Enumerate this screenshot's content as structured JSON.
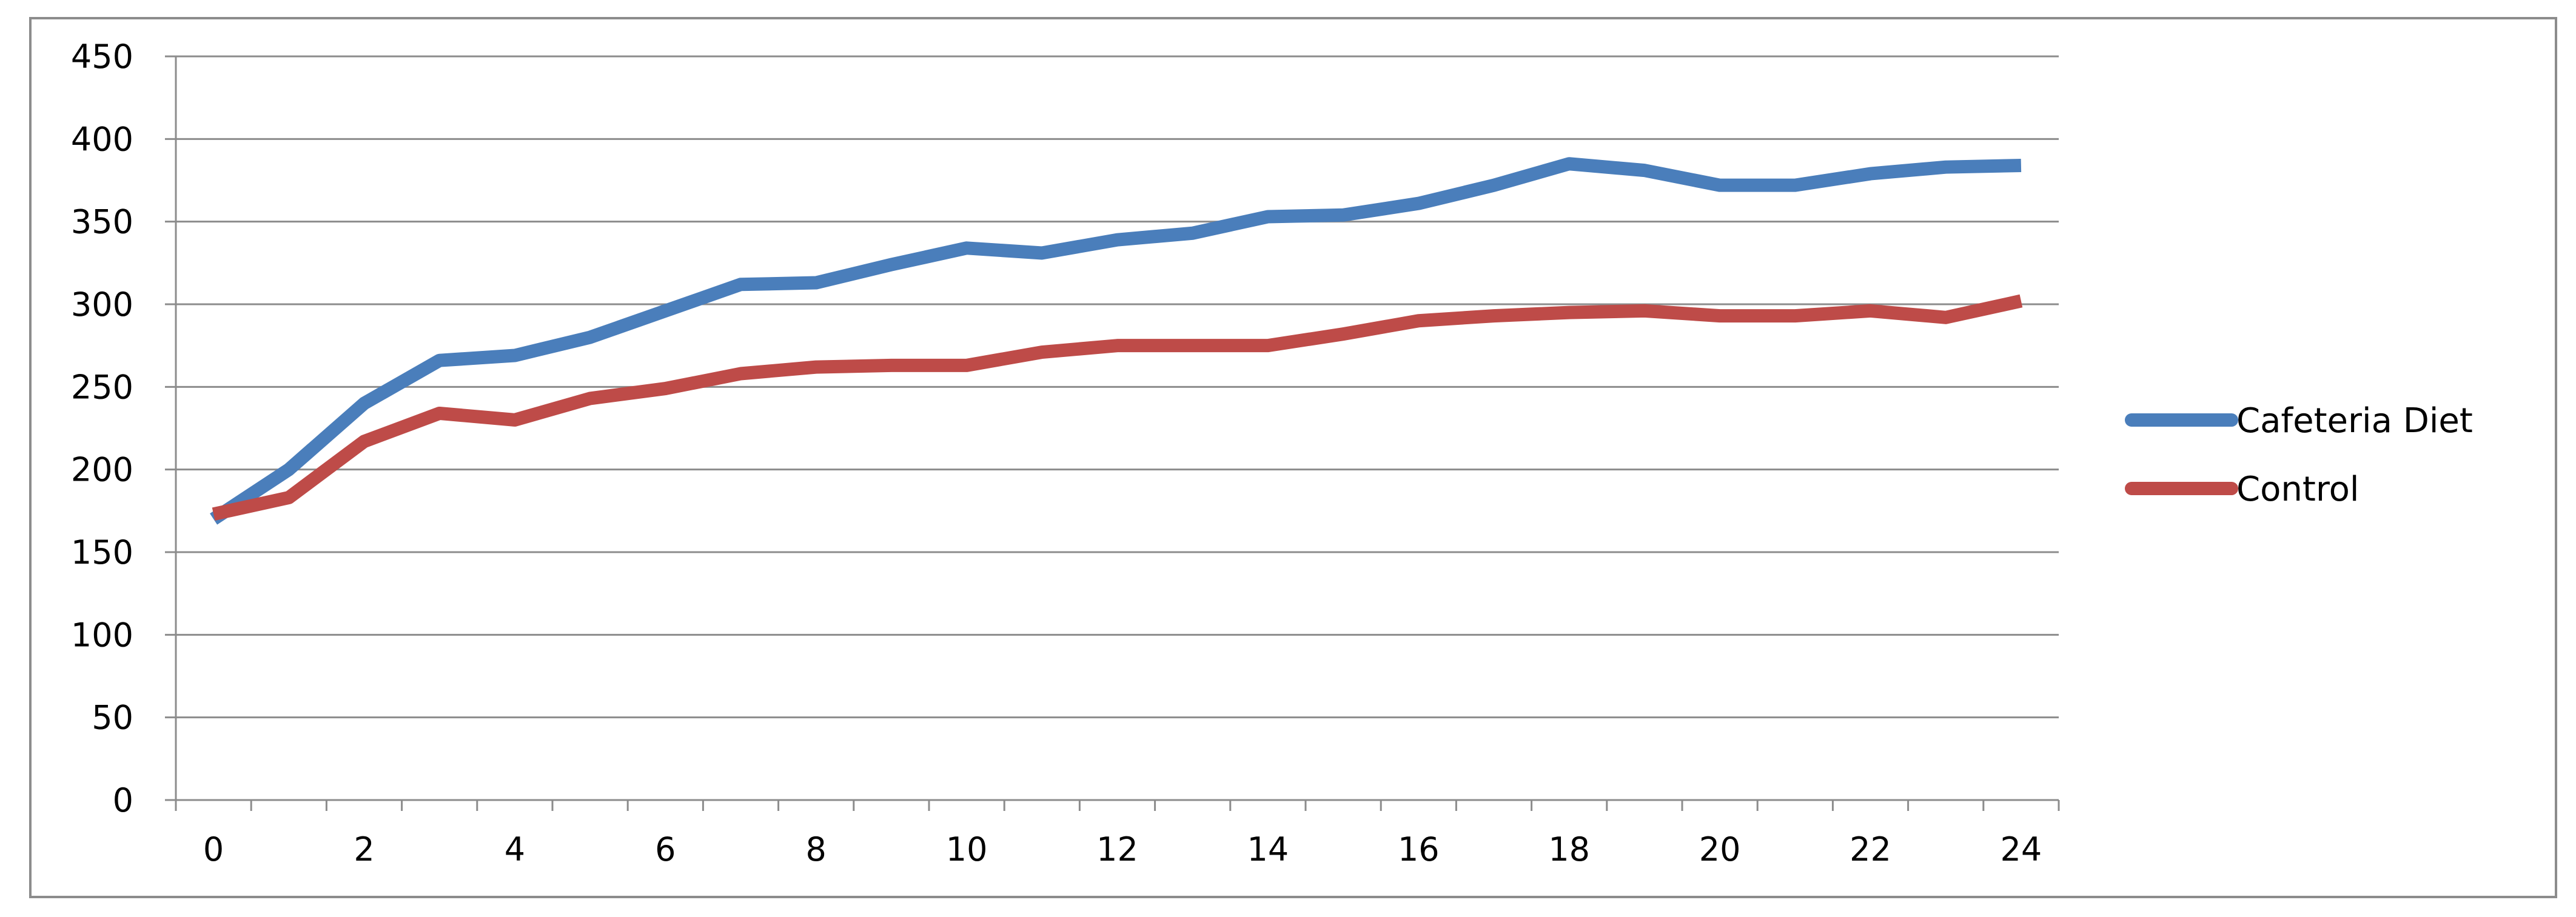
{
  "chart_data": {
    "type": "line",
    "x": [
      0,
      1,
      2,
      3,
      4,
      5,
      6,
      7,
      8,
      9,
      10,
      11,
      12,
      13,
      14,
      15,
      16,
      17,
      18,
      19,
      20,
      21,
      22,
      23,
      24
    ],
    "xticks": [
      0,
      2,
      4,
      6,
      8,
      10,
      12,
      14,
      16,
      18,
      20,
      22,
      24
    ],
    "yticks": [
      0,
      50,
      100,
      150,
      200,
      250,
      300,
      350,
      400,
      450
    ],
    "xlim": [
      -0.5,
      24.5
    ],
    "ylim": [
      0,
      450
    ],
    "grid": true,
    "legend_position": "right",
    "series": [
      {
        "name": "Cafeteria Diet",
        "color": "#4A7EBB",
        "values": [
          170,
          200,
          240,
          266,
          269,
          280,
          296,
          312,
          313,
          324,
          334,
          331,
          339,
          343,
          353,
          354,
          361,
          372,
          385,
          381,
          372,
          372,
          379,
          383,
          384
        ]
      },
      {
        "name": "Control",
        "color": "#BE4B48",
        "values": [
          173,
          183,
          217,
          234,
          230,
          243,
          249,
          258,
          262,
          263,
          263,
          271,
          275,
          275,
          275,
          282,
          290,
          293,
          295,
          296,
          293,
          293,
          296,
          292,
          302
        ]
      }
    ]
  }
}
